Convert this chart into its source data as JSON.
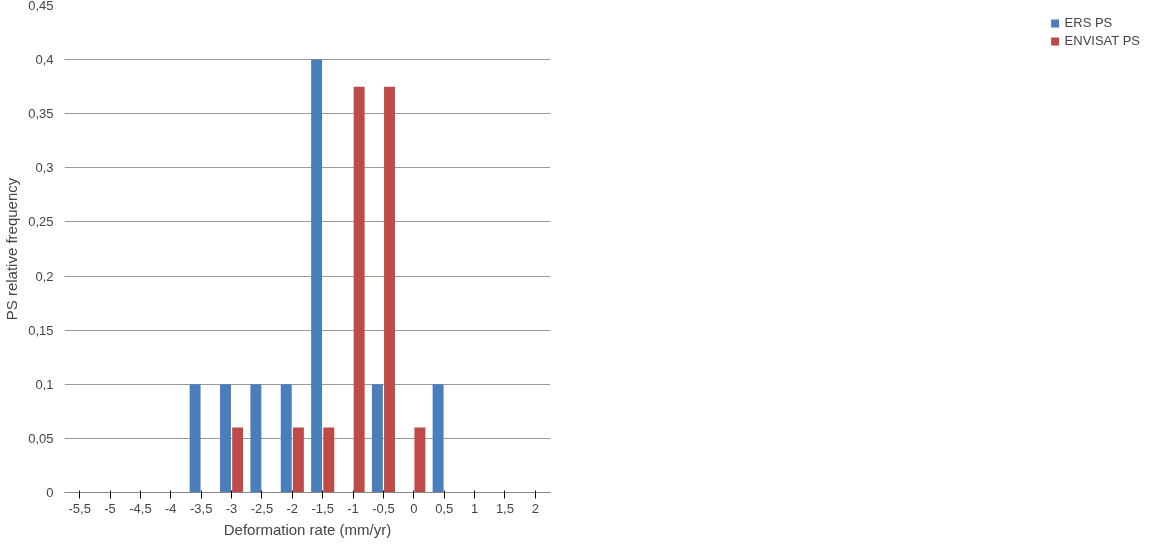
{
  "chart_data": {
    "type": "bar",
    "xlabel": "Deformation rate (mm/yr)",
    "ylabel": "PS relative frequency",
    "categories": [
      "-5,5",
      "-5",
      "-4,5",
      "-4",
      "-3,5",
      "-3",
      "-2,5",
      "-2",
      "-1,5",
      "-1",
      "-0,5",
      "0",
      "0,5",
      "1",
      "1,5",
      "2"
    ],
    "series": [
      {
        "name": "ERS PS",
        "color": "#4a7ebb",
        "values": [
          0,
          0,
          0,
          0,
          0.1,
          0.1,
          0.1,
          0.1,
          0.4,
          0,
          0.1,
          0,
          0.1,
          0,
          0,
          0
        ]
      },
      {
        "name": "ENVISAT PS",
        "color": "#be4b48",
        "values": [
          0,
          0,
          0,
          0,
          0,
          0.06,
          0,
          0.06,
          0.06,
          0.375,
          0.375,
          0.06,
          0,
          0,
          0,
          0
        ]
      }
    ],
    "ylim": [
      0,
      0.45
    ],
    "yticks": [
      0,
      {
        "value": 0.05,
        "label": "0,05"
      },
      {
        "value": 0.1,
        "label": "0,1"
      },
      {
        "value": 0.15,
        "label": "0,15"
      },
      {
        "value": 0.2,
        "label": "0,2"
      },
      {
        "value": 0.25,
        "label": "0,25"
      },
      {
        "value": 0.3,
        "label": "0,3"
      },
      {
        "value": 0.35,
        "label": "0,35"
      },
      {
        "value": 0.4,
        "label": "0,4"
      },
      {
        "value": 0.45,
        "label": "0,45"
      }
    ],
    "grid": "y",
    "legend": "right"
  }
}
